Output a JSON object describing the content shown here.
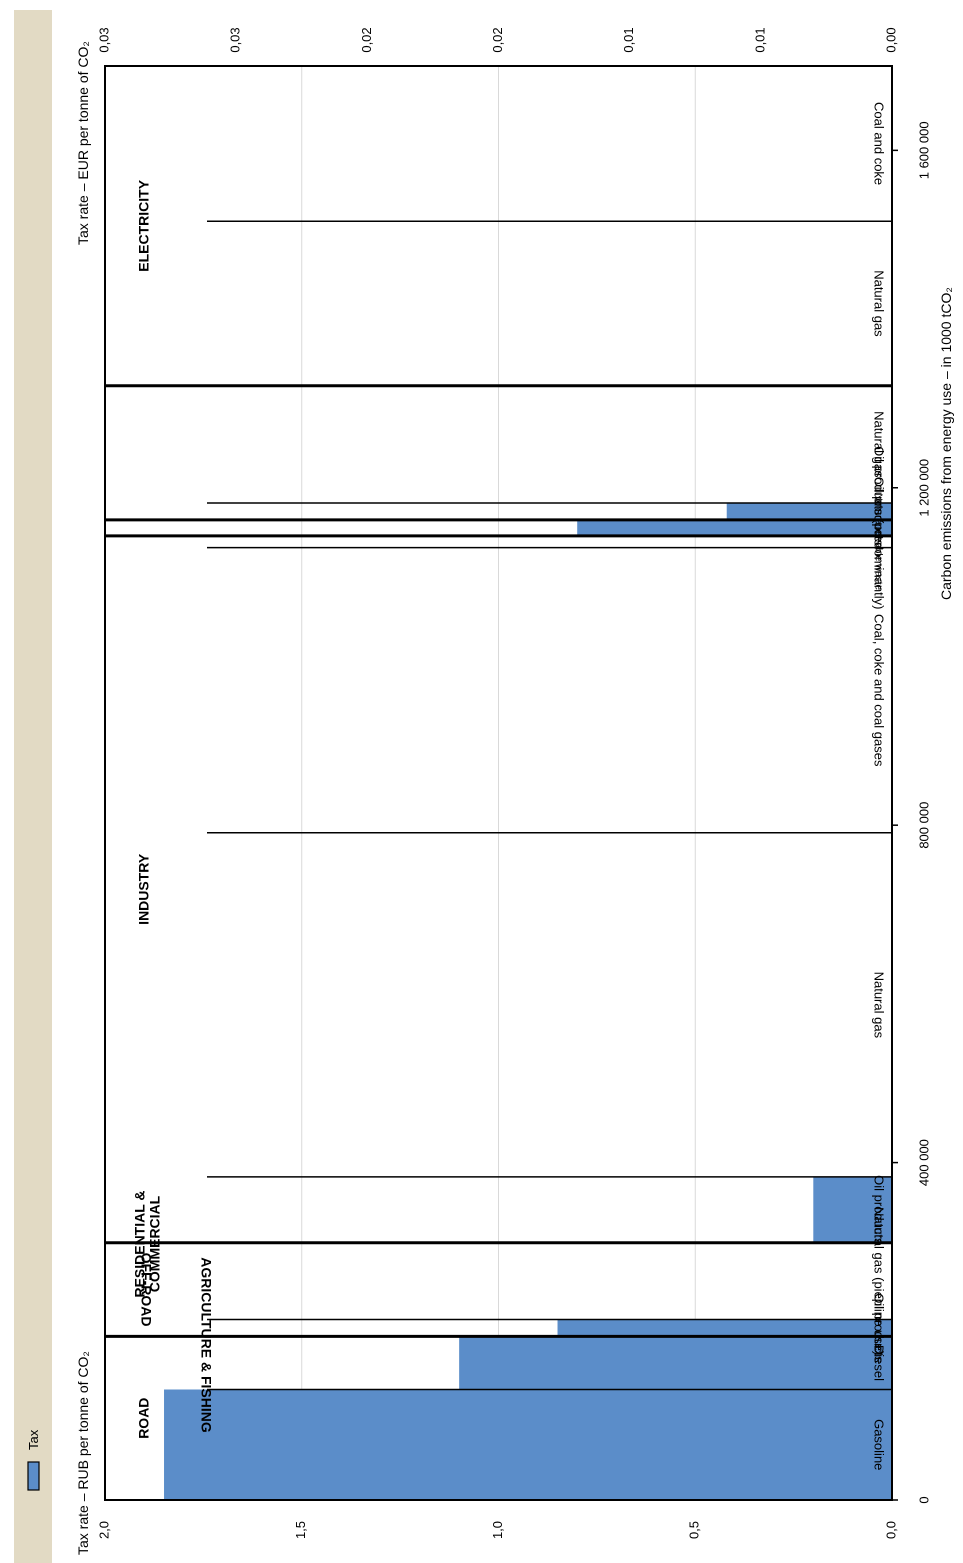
{
  "legend": {
    "label": "Tax",
    "color": "#5b8dc9"
  },
  "chart_data": {
    "type": "bar",
    "orientation": "rotated-90",
    "xlabel": "Carbon emissions from energy use – in 1000 tCO₂",
    "ylabel_left": "Tax rate – RUB per tonne of CO₂",
    "ylabel_right": "Tax rate – EUR per tonne of CO₂",
    "xlim": [
      0,
      1700000
    ],
    "ylim": [
      0,
      2.0
    ],
    "ylim_eur": [
      0,
      0.03
    ],
    "x_ticks": [
      {
        "value": 0,
        "label": "0"
      },
      {
        "value": 400000,
        "label": "400 000"
      },
      {
        "value": 800000,
        "label": "800 000"
      },
      {
        "value": 1200000,
        "label": "1 200 000"
      },
      {
        "value": 1600000,
        "label": "1 600 000"
      }
    ],
    "y_ticks": [
      {
        "value": 0,
        "label": "0,0"
      },
      {
        "value": 0.5,
        "label": "0,5"
      },
      {
        "value": 1.0,
        "label": "1,0"
      },
      {
        "value": 1.5,
        "label": "1,5"
      },
      {
        "value": 2.0,
        "label": "2,0"
      }
    ],
    "y_ticks_eur": [
      {
        "value": 0,
        "label": "0,00"
      },
      {
        "value": 0.005,
        "label": "0,01"
      },
      {
        "value": 0.01,
        "label": "0,01"
      },
      {
        "value": 0.015,
        "label": "0,02"
      },
      {
        "value": 0.02,
        "label": "0,02"
      },
      {
        "value": 0.025,
        "label": "0,03"
      },
      {
        "value": 0.03,
        "label": "0,03"
      }
    ],
    "grid": true,
    "legend_position": "top-left",
    "segments": [
      {
        "label": "Gasoline",
        "start": 0,
        "end": 131000,
        "tax": 1.85
      },
      {
        "label": "Diesel",
        "start": 131000,
        "end": 194000,
        "tax": 1.1
      },
      {
        "label": "Oil products",
        "start": 194000,
        "end": 214000,
        "tax": 0.85
      },
      {
        "label": "Natural gas (piepline use)",
        "start": 214000,
        "end": 305000,
        "tax": 0
      },
      {
        "label": "Oil products",
        "start": 305000,
        "end": 383000,
        "tax": 0.2
      },
      {
        "label": "Natural gas",
        "start": 383000,
        "end": 791000,
        "tax": 0
      },
      {
        "label": "Coal, coke and coal gases",
        "start": 791000,
        "end": 1129000,
        "tax": 0
      },
      {
        "label": "Non-renewable waste",
        "start": 1129000,
        "end": 1143000,
        "tax": 0
      },
      {
        "label": "Oil products (predominantly)",
        "start": 1143000,
        "end": 1162000,
        "tax": 0.8
      },
      {
        "label": "Oil products",
        "start": 1162000,
        "end": 1182000,
        "tax": 0.42
      },
      {
        "label": "Natural gas",
        "start": 1182000,
        "end": 1321000,
        "tax": 0
      },
      {
        "label": "Natural gas",
        "start": 1321000,
        "end": 1516000,
        "tax": 0
      },
      {
        "label": "Coal  and coke",
        "start": 1516000,
        "end": 1700000,
        "tax": 0
      }
    ],
    "sectors": [
      {
        "label": "ROAD",
        "start": 0,
        "end": 194000
      },
      {
        "label": "OFF-ROAD",
        "start": 194000,
        "end": 305000
      },
      {
        "label": "INDUSTRY",
        "start": 305000,
        "end": 1143000
      },
      {
        "label": "AGRICULTURE & FISHING",
        "start": 1143000,
        "end": 1162000
      },
      {
        "label": "RESIDENTIAL & COMMERCIAL",
        "start": 1162000,
        "end": 1321000
      },
      {
        "label": "ELECTRICITY",
        "start": 1321000,
        "end": 1700000
      }
    ]
  }
}
